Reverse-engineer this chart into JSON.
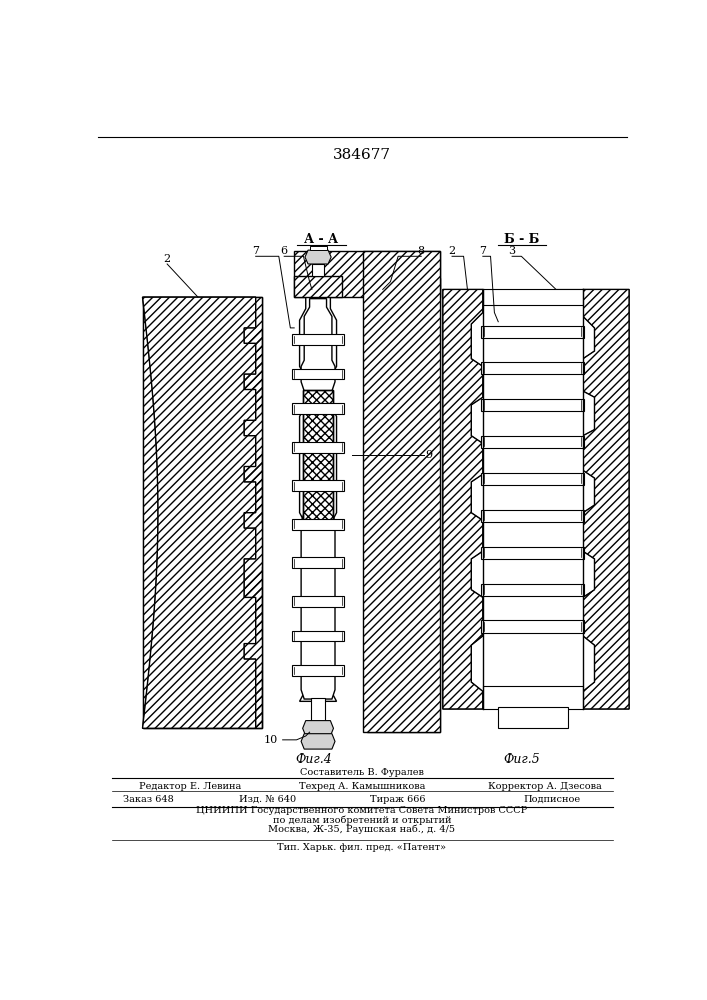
{
  "patent_number": "384677",
  "background_color": "#ffffff",
  "line_color": "#000000",
  "fig4_label": "Фиг.4",
  "fig5_label": "Фиг.5",
  "section_a": "А - А",
  "section_b": "Б - Б",
  "footer_line1": "Составитель В. Фуралев",
  "footer_line2_left": "Редактор Е. Левина",
  "footer_line2_mid": "Техред А. Камышникова",
  "footer_line2_right": "Корректор А. Дзесова",
  "footer_line3_1": "Заказ 648",
  "footer_line3_2": "Изд. № 640",
  "footer_line3_3": "Тираж 666",
  "footer_line3_4": "Подписное",
  "footer_line4": "ЦНИИПИ Государственного комитета Совета Министров СССР",
  "footer_line5": "по делам изобретений и открытий",
  "footer_line6": "Москва, Ж-35, Раушская наб., д. 4/5",
  "footer_line7": "Тип. Харьк. фил. пред. «Патент»"
}
